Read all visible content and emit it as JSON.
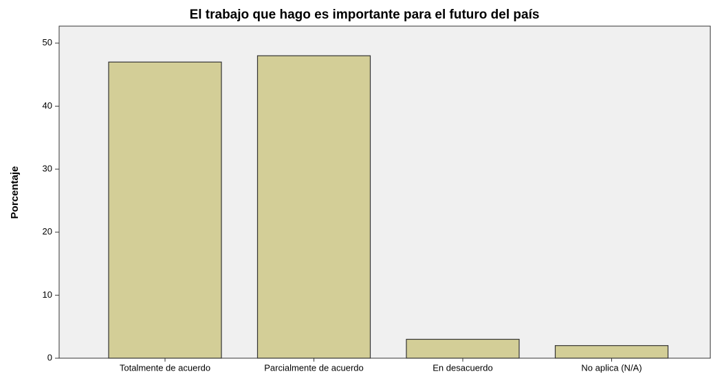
{
  "chart_data": {
    "type": "bar",
    "title": "El trabajo que hago es importante para el futuro del país",
    "y_label": "Porcentaje",
    "categories": [
      "Totalmente de acuerdo",
      "Parcialmente de acuerdo",
      "En desacuerdo",
      "No aplica (N/A)"
    ],
    "values": [
      47,
      48,
      3,
      2
    ],
    "color": "#d3ce97",
    "ylim": [
      0,
      52.7
    ],
    "yticks": [
      0,
      10,
      20,
      30,
      40,
      50
    ],
    "grid": false
  }
}
